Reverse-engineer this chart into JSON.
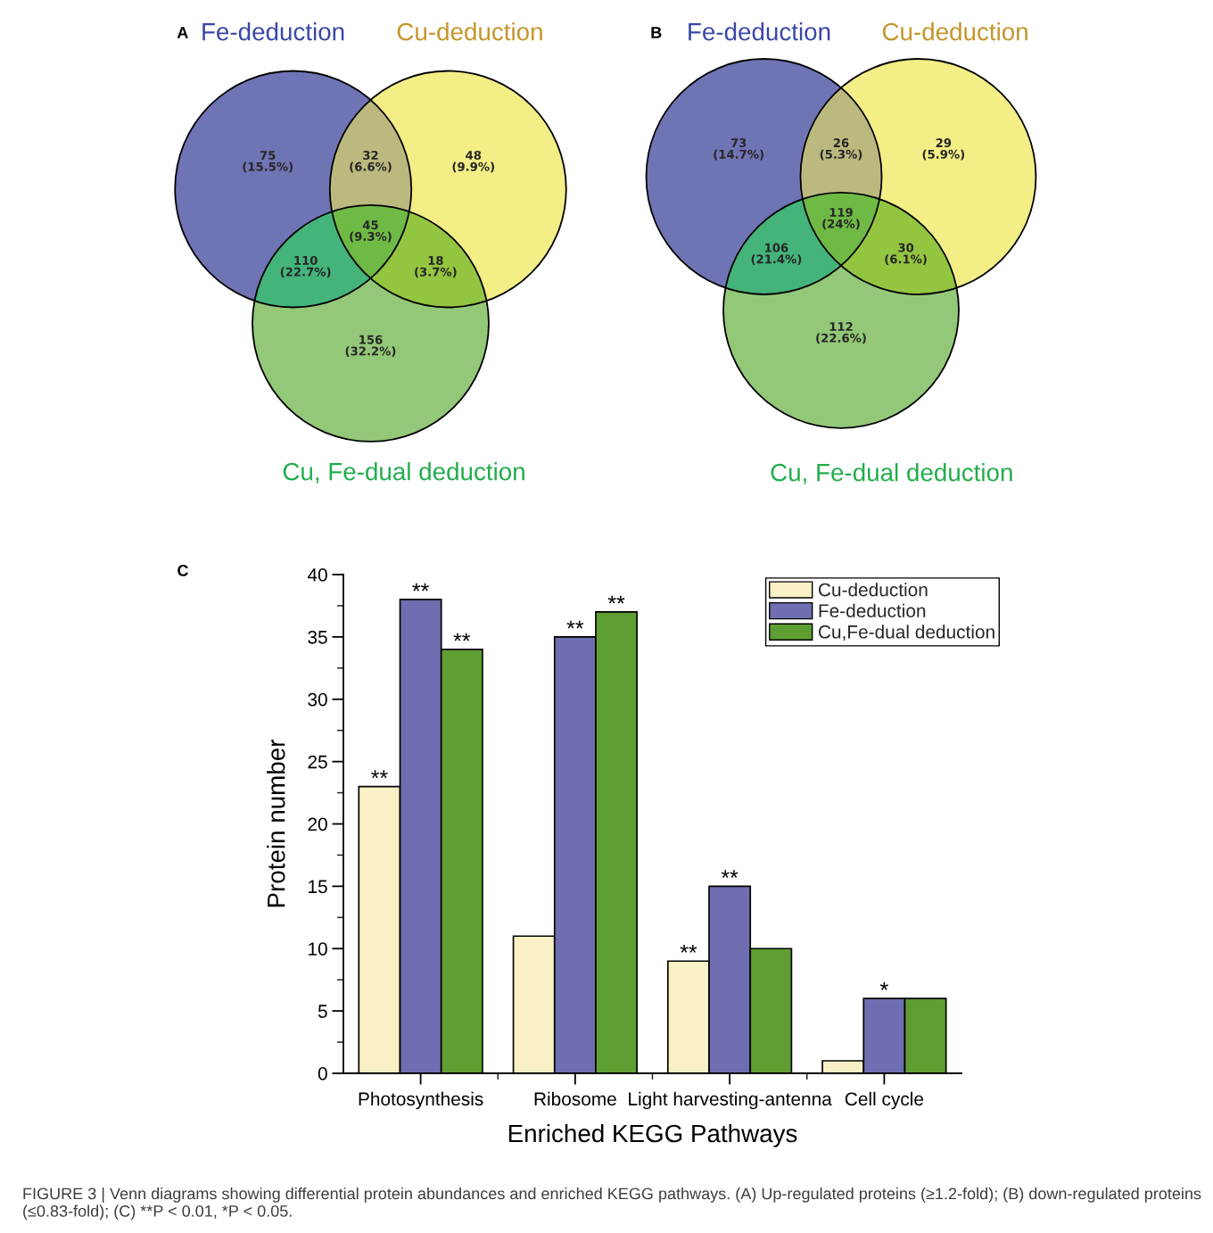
{
  "chart_data": [
    {
      "type": "other",
      "title": "A",
      "categories": [
        null,
        null,
        null,
        null,
        null,
        null,
        null
      ],
      "value_labels": [
        "75\n(15.5%)",
        "32\n(6.6%)",
        "48\n(9.9%)",
        "45\n(9.3%)",
        "110\n(22.7%)",
        "18\n(3.7%)",
        "156\n(32.2%)"
      ],
      "colors": [
        "#6f74b5",
        "#bcb97f",
        "#f3ee86",
        "#6fba45",
        "#44b47b",
        "#94c540",
        "#93c878"
      ],
      "annotations": [
        "Fe-deduction",
        "Cu-deduction",
        "Cu, Fe-dual deduction"
      ]
    },
    {
      "type": "other",
      "title": "B",
      "categories": [
        null,
        null,
        null,
        null,
        null,
        null,
        null
      ],
      "value_labels": [
        "73\n(14.7%)",
        "26\n(5.3%)",
        "29\n(5.9%)",
        "119\n(24%)",
        "106\n(21.4%)",
        "30\n(6.1%)",
        "112\n(22.6%)"
      ],
      "colors": [
        "#6f74b5",
        "#bcb97f",
        "#f3ee86",
        "#6fba45",
        "#44b47b",
        "#94c540",
        "#93c878"
      ],
      "annotations": [
        "Fe-deduction",
        "Cu-deduction",
        "Cu, Fe-dual deduction"
      ]
    },
    {
      "type": "bar",
      "xlabel": "Enriched KEGG Pathways",
      "ylabel": "Protein number",
      "categories": [
        "Photosynthesis",
        "Ribosome",
        "Light harvesting-antenna",
        "Cell cycle"
      ],
      "series": [
        {
          "name": "Cu-deduction",
          "color": "#f9f1c5",
          "values": [
            23,
            11,
            9,
            1
          ],
          "value_labels": [
            "**",
            null,
            "**",
            null
          ]
        },
        {
          "name": "Fe-deduction",
          "color": "#6e6eb0",
          "values": [
            38,
            35,
            15,
            6
          ],
          "value_labels": [
            "**",
            "**",
            "**",
            "*"
          ]
        },
        {
          "name": "Cu,Fe-dual deduction",
          "color": "#5e9e32",
          "values": [
            34,
            37,
            10,
            6
          ],
          "value_labels": [
            "**",
            "**",
            null,
            null
          ]
        }
      ],
      "ylim": [
        0,
        40
      ],
      "yticks": [
        0,
        5,
        10,
        15,
        20,
        25,
        30,
        35,
        40
      ],
      "legend": "top right",
      "annotations": [
        "C",
        "FIGURE 3 | Venn diagrams showing differential protein abundances and enriched KEGG pathways. (A) Up-regulated proteins (≥1.2-fold); (B) down-regulated proteins (≤0.83-fold); (C) **P < 0.01, *P < 0.05."
      ]
    }
  ]
}
